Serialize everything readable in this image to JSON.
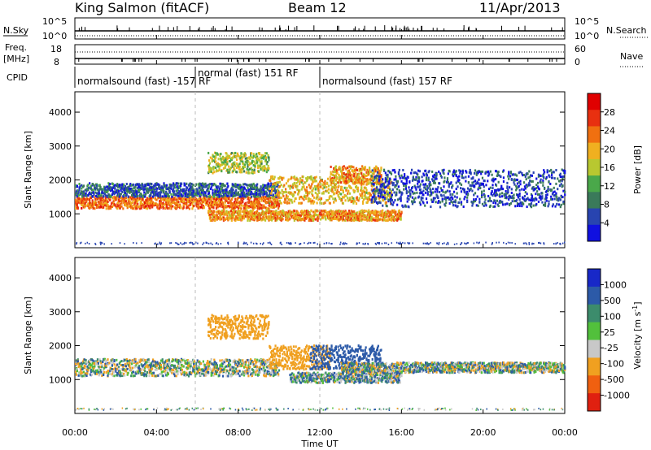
{
  "header": {
    "station": "King Salmon (fitACF)",
    "beam": "Beam 12",
    "date": "11/Apr/2013"
  },
  "strips": {
    "nsky_label": "N.Sky",
    "nsky_ticks": [
      "10^5",
      "10^0"
    ],
    "nsearch_label": "N.Search",
    "nsearch_ticks": [
      "10^5",
      "10^0"
    ],
    "freq_label": "Freq.",
    "freq_unit": "[MHz]",
    "freq_ticks": [
      "18",
      "8"
    ],
    "nave_label": "Nave",
    "nave_ticks": [
      "60",
      "0"
    ],
    "cpid_label": "CPID"
  },
  "cpid_segments": [
    {
      "label": "normalsound (fast) -157 RF",
      "start_hour": 0.0,
      "end_hour": 5.9
    },
    {
      "label": "normal (fast) 151 RF",
      "start_hour": 5.9,
      "end_hour": 12.0
    },
    {
      "label": "normalsound (fast) 157 RF",
      "start_hour": 12.0,
      "end_hour": 24.0
    }
  ],
  "x_axis": {
    "label": "Time UT",
    "ticks": [
      "00:00",
      "04:00",
      "08:00",
      "12:00",
      "16:00",
      "20:00",
      "00:00"
    ],
    "range_hours": [
      0,
      24
    ]
  },
  "y_axis": {
    "label": "Slant Range [km]",
    "ticks": [
      "1000",
      "2000",
      "3000",
      "4000"
    ],
    "range_km": [
      0,
      4600
    ]
  },
  "power_colorbar": {
    "label": "Power [dB]",
    "ticks": [
      "4",
      "8",
      "12",
      "16",
      "20",
      "24",
      "28"
    ],
    "colors": [
      "#1010e0",
      "#2844b0",
      "#3a7a5a",
      "#4aa84a",
      "#b8c830",
      "#f0b020",
      "#f07010",
      "#e83010",
      "#e00000"
    ]
  },
  "velocity_colorbar": {
    "label_main": "Velocity [m s",
    "label_sup": "-1",
    "label_end": "]",
    "ticks": [
      "1000",
      "500",
      "100",
      "25",
      "-25",
      "-100",
      "-500",
      "-1000"
    ],
    "colors": [
      "#1828c8",
      "#2c5aa8",
      "#3c8c6c",
      "#52c03c",
      "#c8c8c8",
      "#f0a020",
      "#f06010",
      "#e02010"
    ]
  },
  "chart_data": [
    {
      "type": "heatmap",
      "panel": "power",
      "title": "",
      "xlabel": "Time UT",
      "ylabel": "Slant Range [km]",
      "xlim": [
        0,
        24
      ],
      "ylim": [
        0,
        4600
      ],
      "zlabel": "Power [dB]",
      "zlim": [
        0,
        30
      ],
      "features": [
        {
          "start_hour": 0.0,
          "end_hour": 10.0,
          "range_start_km": 1150,
          "range_end_km": 1500,
          "power_db": 22
        },
        {
          "start_hour": 0.0,
          "end_hour": 10.0,
          "range_start_km": 1500,
          "range_end_km": 1900,
          "power_db": 6
        },
        {
          "start_hour": 6.5,
          "end_hour": 9.5,
          "range_start_km": 2200,
          "range_end_km": 2800,
          "power_db": 14
        },
        {
          "start_hour": 9.5,
          "end_hour": 15.5,
          "range_start_km": 1300,
          "range_end_km": 2100,
          "power_db": 18
        },
        {
          "start_hour": 6.5,
          "end_hour": 16.0,
          "range_start_km": 800,
          "range_end_km": 1100,
          "power_db": 20
        },
        {
          "start_hour": 12.5,
          "end_hour": 15.0,
          "range_start_km": 1900,
          "range_end_km": 2400,
          "power_db": 20
        },
        {
          "start_hour": 14.5,
          "end_hour": 24.0,
          "range_start_km": 1200,
          "range_end_km": 2300,
          "power_db": 5
        }
      ]
    },
    {
      "type": "heatmap",
      "panel": "velocity",
      "title": "",
      "xlabel": "Time UT",
      "ylabel": "Slant Range [km]",
      "xlim": [
        0,
        24
      ],
      "ylim": [
        0,
        4600
      ],
      "zlabel": "Velocity [m s-1]",
      "zlim": [
        -1000,
        1000
      ],
      "features": [
        {
          "start_hour": 0.0,
          "end_hour": 10.0,
          "range_start_km": 1100,
          "range_end_km": 1600,
          "velocity_ms": 0
        },
        {
          "start_hour": 6.5,
          "end_hour": 9.5,
          "range_start_km": 2200,
          "range_end_km": 2900,
          "velocity_ms": -300
        },
        {
          "start_hour": 9.5,
          "end_hour": 12.5,
          "range_start_km": 1300,
          "range_end_km": 2000,
          "velocity_ms": -300
        },
        {
          "start_hour": 11.5,
          "end_hour": 15.0,
          "range_start_km": 1300,
          "range_end_km": 2000,
          "velocity_ms": 300
        },
        {
          "start_hour": 10.5,
          "end_hour": 16.0,
          "range_start_km": 900,
          "range_end_km": 1200,
          "velocity_ms": 60
        },
        {
          "start_hour": 13.0,
          "end_hour": 24.0,
          "range_start_km": 1200,
          "range_end_km": 1500,
          "velocity_ms": 0
        }
      ]
    }
  ]
}
